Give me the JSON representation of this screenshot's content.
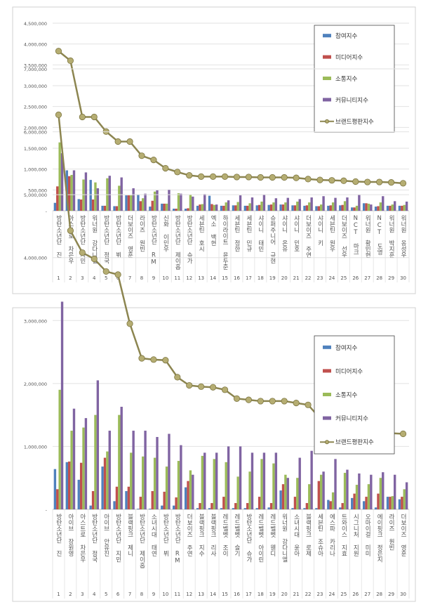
{
  "chart_data": [
    {
      "type": "bar",
      "categories": [
        "방탄소년단 진",
        "아스트로 차은우",
        "방탄소년단 지민",
        "워너원 강다니엘",
        "방탄소년단 정국",
        "방탄소년단 뷔",
        "더보이즈 영훈",
        "라이즈 원빈",
        "방탄소년단 RM",
        "신화 이민우",
        "방탄소년단 제이홉",
        "방탄소년단 슈가",
        "세븐틴 호시",
        "엑소 백현",
        "하이라이트 윤두준",
        "세븐틴 정한",
        "세븐틴 민규",
        "샤이니 태민",
        "슈퍼주니어 규현",
        "샤이니 온유",
        "샤이니 민호",
        "더보이즈 주연",
        "샤이니 키",
        "세븐틴 원우",
        "더보이즈 선우",
        "NCT 마크",
        "워너원 황민현",
        "NCT 도영",
        "워너원 박지훈",
        "워너원 옹성우"
      ],
      "ylim": [
        0,
        4500000
      ],
      "yticks": [
        "-",
        "500,000",
        "1,000,000",
        "1,500,000",
        "2,000,000",
        "2,500,000",
        "3,000,000",
        "3,500,000",
        "4,000,000",
        "4,500,000"
      ],
      "grid": true,
      "legend": "top-right",
      "series": [
        {
          "name": "참여지수",
          "kind": "bar",
          "color": "#4f81bd",
          "values": [
            190000,
            970000,
            280000,
            740000,
            120000,
            110000,
            370000,
            380000,
            100000,
            170000,
            50000,
            50000,
            120000,
            360000,
            120000,
            130000,
            120000,
            130000,
            140000,
            150000,
            130000,
            120000,
            110000,
            120000,
            130000,
            80000,
            180000,
            100000,
            120000,
            120000
          ]
        },
        {
          "name": "미디어지수",
          "kind": "bar",
          "color": "#c0504d",
          "values": [
            585000,
            830000,
            270000,
            270000,
            120000,
            110000,
            370000,
            230000,
            240000,
            170000,
            50000,
            60000,
            150000,
            160000,
            120000,
            130000,
            120000,
            140000,
            150000,
            150000,
            130000,
            130000,
            110000,
            130000,
            140000,
            80000,
            180000,
            110000,
            120000,
            120000
          ]
        },
        {
          "name": "소통지수",
          "kind": "bar",
          "color": "#9bbb59",
          "values": [
            1640000,
            860000,
            750000,
            680000,
            780000,
            600000,
            370000,
            300000,
            460000,
            170000,
            420000,
            380000,
            160000,
            140000,
            200000,
            210000,
            180000,
            220000,
            200000,
            200000,
            220000,
            200000,
            150000,
            200000,
            230000,
            120000,
            170000,
            200000,
            150000,
            140000
          ]
        },
        {
          "name": "커뮤니티지수",
          "kind": "bar",
          "color": "#8064a2",
          "values": [
            1380000,
            970000,
            920000,
            540000,
            840000,
            800000,
            540000,
            410000,
            490000,
            500000,
            410000,
            340000,
            400000,
            150000,
            250000,
            370000,
            320000,
            380000,
            300000,
            310000,
            280000,
            320000,
            350000,
            310000,
            320000,
            380000,
            150000,
            350000,
            230000,
            220000
          ]
        },
        {
          "name": "브랜드평판지수",
          "kind": "line",
          "color": "#8c8550",
          "values": [
            3830000,
            3600000,
            2250000,
            2250000,
            1900000,
            1660000,
            1660000,
            1320000,
            1220000,
            1020000,
            930000,
            850000,
            820000,
            820000,
            820000,
            810000,
            810000,
            800000,
            800000,
            800000,
            790000,
            760000,
            740000,
            730000,
            720000,
            700000,
            690000,
            690000,
            680000,
            660000
          ]
        }
      ]
    },
    {
      "type": "bar",
      "categories": [
        "방탄소년단 진",
        "아이브 장원영",
        "아스트로 차은우",
        "방탄소년단 정국",
        "아이브 안유진",
        "방탄소년단 지민",
        "블랙핑크 제니",
        "방탄소년단 제이홉",
        "소녀시대 태연",
        "방탄소년단 뷔",
        "방탄소년단 RM",
        "더보이즈 주연",
        "블랙핑크 지수",
        "블랙핑크 리사",
        "레드벨벳 조이",
        "레드벨벳 슬기",
        "방탄소년단 슈가",
        "레드벨벳 아이린",
        "레드벨벳 웬디",
        "워너원 강다니엘",
        "소녀시대 윤아",
        "블랙핑크 로제",
        "세븐틴 조슈아",
        "에스파 카리나",
        "트와이스 지효",
        "시그니처 지원",
        "오마이걸 미미",
        "에이핑크 정은지",
        "라이즈 원빈",
        "더보이즈 영훈"
      ],
      "ylim": [
        0,
        7000000
      ],
      "yticks": [
        "-",
        "1,000,000",
        "2,000,000",
        "3,000,000",
        "4,000,000",
        "5,000,000",
        "6,000,000",
        "7,000,000"
      ],
      "grid": true,
      "legend": "top-right",
      "series": [
        {
          "name": "참여지수",
          "kind": "bar",
          "color": "#4f81bd",
          "values": [
            640000,
            750000,
            470000,
            60000,
            680000,
            130000,
            290000,
            10000,
            10000,
            60000,
            60000,
            350000,
            20000,
            20000,
            20000,
            20000,
            20000,
            20000,
            30000,
            300000,
            20000,
            20000,
            20000,
            150000,
            30000,
            180000,
            130000,
            30000,
            200000,
            160000
          ]
        },
        {
          "name": "미디어지수",
          "kind": "bar",
          "color": "#c0504d",
          "values": [
            320000,
            760000,
            740000,
            290000,
            820000,
            360000,
            360000,
            200000,
            290000,
            280000,
            190000,
            450000,
            100000,
            100000,
            200000,
            100000,
            100000,
            200000,
            100000,
            400000,
            200000,
            100000,
            450000,
            130000,
            100000,
            250000,
            200000,
            250000,
            200000,
            200000
          ]
        },
        {
          "name": "소통지수",
          "kind": "bar",
          "color": "#9bbb59",
          "values": [
            1900000,
            1250000,
            1300000,
            1500000,
            920000,
            1500000,
            900000,
            840000,
            820000,
            680000,
            770000,
            620000,
            850000,
            800000,
            750000,
            520000,
            600000,
            800000,
            730000,
            550000,
            500000,
            400000,
            550000,
            270000,
            580000,
            390000,
            400000,
            500000,
            210000,
            320000
          ]
        },
        {
          "name": "커뮤니티지수",
          "kind": "bar",
          "color": "#8064a2",
          "values": [
            3300000,
            1600000,
            1450000,
            2050000,
            1250000,
            1630000,
            1250000,
            1250000,
            1150000,
            1200000,
            1020000,
            550000,
            900000,
            900000,
            1000000,
            1000000,
            900000,
            900000,
            900000,
            500000,
            820000,
            930000,
            600000,
            800000,
            630000,
            570000,
            550000,
            590000,
            550000,
            430000
          ]
        },
        {
          "name": "브랜드평판지수",
          "kind": "line",
          "color": "#8c8550",
          "values": [
            6270000,
            4430000,
            4080000,
            3980000,
            3780000,
            3730000,
            2950000,
            2400000,
            2380000,
            2370000,
            2100000,
            1970000,
            1950000,
            1940000,
            1900000,
            1760000,
            1740000,
            1720000,
            1720000,
            1720000,
            1690000,
            1660000,
            1450000,
            1370000,
            1330000,
            1270000,
            1250000,
            1240000,
            1210000,
            1200000
          ]
        }
      ]
    }
  ]
}
